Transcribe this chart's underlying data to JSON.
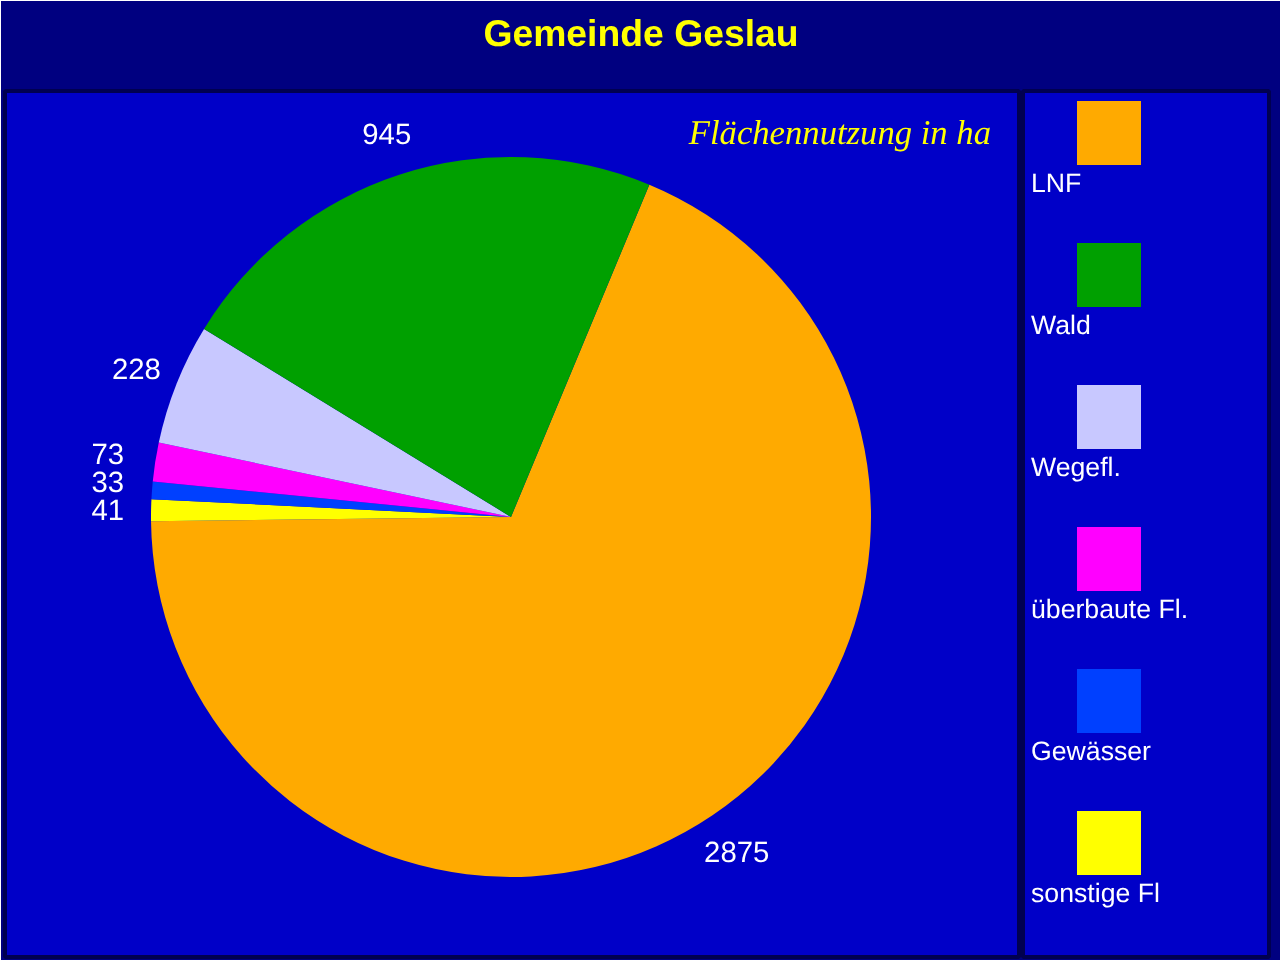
{
  "chart_data": {
    "type": "pie",
    "title": "Gemeinde Geslau",
    "subtitle": "Flächennutzung in ha",
    "categories": [
      "LNF",
      "Wald",
      "Wegefl.",
      "überbaute Fl.",
      "Gewässer",
      "sonstige Fl"
    ],
    "values": [
      2875,
      945,
      228,
      73,
      33,
      41
    ],
    "colors": [
      "#ffaa00",
      "#00a000",
      "#c8c8ff",
      "#ff00ff",
      "#0040ff",
      "#ffff00"
    ],
    "data_labels": true,
    "legend": "right"
  }
}
